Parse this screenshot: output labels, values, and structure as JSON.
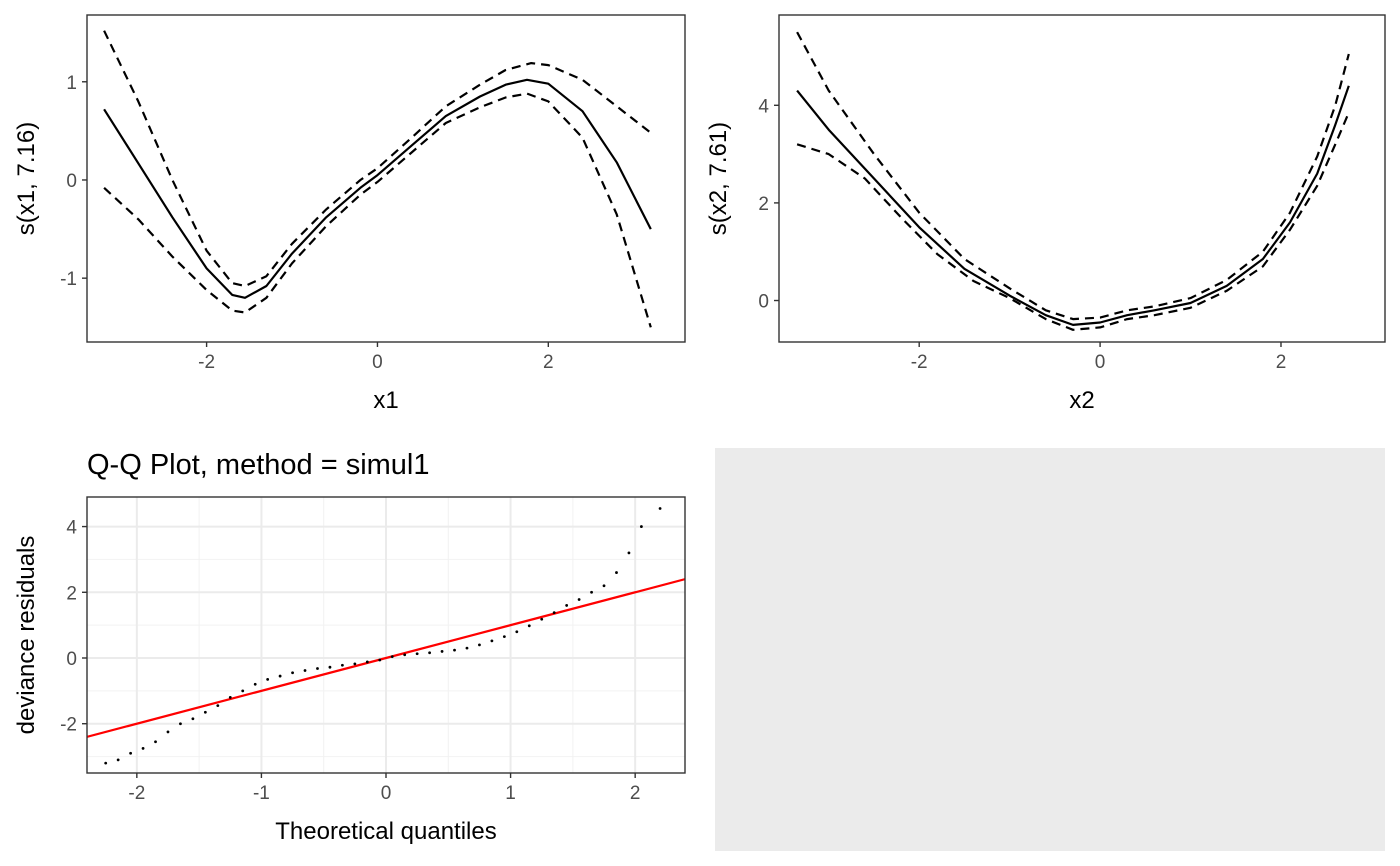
{
  "chart_data": [
    {
      "type": "line",
      "xlabel": "x1",
      "ylabel": "s(x1, 7.16)",
      "xlim": [
        -3.4,
        3.6
      ],
      "ylim": [
        -1.65,
        1.68
      ],
      "xticks": [
        -2,
        0,
        2
      ],
      "yticks": [
        -1,
        0,
        1
      ],
      "xtick_labels": [
        "-2",
        "0",
        "2"
      ],
      "ytick_labels": [
        "-1",
        "0",
        "1"
      ],
      "grid": false,
      "series": [
        {
          "style": "solid",
          "x": [
            -3.2,
            -2.8,
            -2.4,
            -2.0,
            -1.7,
            -1.55,
            -1.3,
            -1.0,
            -0.6,
            -0.2,
            0.0,
            0.4,
            0.8,
            1.2,
            1.5,
            1.75,
            2.0,
            2.4,
            2.8,
            3.2
          ],
          "y": [
            0.72,
            0.17,
            -0.38,
            -0.9,
            -1.17,
            -1.2,
            -1.08,
            -0.75,
            -0.38,
            -0.08,
            0.05,
            0.35,
            0.65,
            0.85,
            0.97,
            1.02,
            0.98,
            0.7,
            0.18,
            -0.5
          ]
        },
        {
          "style": "dashed",
          "x": [
            -3.2,
            -2.8,
            -2.4,
            -2.0,
            -1.7,
            -1.55,
            -1.3,
            -1.0,
            -0.6,
            -0.2,
            0.0,
            0.4,
            0.8,
            1.2,
            1.5,
            1.8,
            2.0,
            2.4,
            2.8,
            3.2
          ],
          "y": [
            1.52,
            0.8,
            0.0,
            -0.72,
            -1.05,
            -1.08,
            -0.98,
            -0.65,
            -0.3,
            -0.0,
            0.12,
            0.43,
            0.75,
            0.97,
            1.12,
            1.19,
            1.17,
            1.02,
            0.75,
            0.48
          ]
        },
        {
          "style": "dashed",
          "x": [
            -3.2,
            -2.8,
            -2.4,
            -2.0,
            -1.7,
            -1.55,
            -1.3,
            -1.0,
            -0.6,
            -0.2,
            0.0,
            0.4,
            0.8,
            1.2,
            1.5,
            1.75,
            2.0,
            2.4,
            2.8,
            3.2
          ],
          "y": [
            -0.08,
            -0.4,
            -0.78,
            -1.12,
            -1.33,
            -1.35,
            -1.2,
            -0.85,
            -0.47,
            -0.15,
            -0.02,
            0.28,
            0.58,
            0.74,
            0.84,
            0.88,
            0.8,
            0.43,
            -0.35,
            -1.5
          ]
        }
      ]
    },
    {
      "type": "line",
      "xlabel": "x2",
      "ylabel": "s(x2, 7.61)",
      "xlim": [
        -3.55,
        3.15
      ],
      "ylim": [
        -0.85,
        5.85
      ],
      "xticks": [
        -2,
        0,
        2
      ],
      "yticks": [
        0,
        2,
        4
      ],
      "xtick_labels": [
        "-2",
        "0",
        "2"
      ],
      "ytick_labels": [
        "0",
        "2",
        "4"
      ],
      "grid": false,
      "series": [
        {
          "style": "solid",
          "x": [
            -3.35,
            -3.0,
            -2.5,
            -2.0,
            -1.5,
            -1.0,
            -0.6,
            -0.3,
            0.0,
            0.3,
            0.6,
            1.0,
            1.4,
            1.8,
            2.1,
            2.4,
            2.6,
            2.75
          ],
          "y": [
            4.3,
            3.5,
            2.5,
            1.5,
            0.65,
            0.1,
            -0.3,
            -0.5,
            -0.45,
            -0.3,
            -0.2,
            -0.05,
            0.3,
            0.85,
            1.6,
            2.6,
            3.6,
            4.4
          ]
        },
        {
          "style": "dashed",
          "x": [
            -3.35,
            -3.0,
            -2.5,
            -2.0,
            -1.5,
            -1.0,
            -0.6,
            -0.3,
            0.0,
            0.3,
            0.6,
            1.0,
            1.4,
            1.8,
            2.1,
            2.4,
            2.6,
            2.75
          ],
          "y": [
            5.5,
            4.3,
            3.0,
            1.8,
            0.85,
            0.25,
            -0.2,
            -0.38,
            -0.35,
            -0.2,
            -0.12,
            0.05,
            0.42,
            1.0,
            1.8,
            2.95,
            4.0,
            5.05
          ]
        },
        {
          "style": "dashed",
          "x": [
            -3.35,
            -3.0,
            -2.6,
            -2.2,
            -1.8,
            -1.4,
            -1.0,
            -0.6,
            -0.3,
            0.0,
            0.3,
            0.6,
            1.0,
            1.4,
            1.8,
            2.1,
            2.4,
            2.6,
            2.75
          ],
          "y": [
            3.2,
            3.0,
            2.5,
            1.7,
            0.95,
            0.4,
            0.05,
            -0.38,
            -0.6,
            -0.55,
            -0.38,
            -0.3,
            -0.15,
            0.2,
            0.7,
            1.45,
            2.35,
            3.2,
            3.85
          ]
        }
      ]
    },
    {
      "type": "scatter",
      "title": "Q-Q Plot, method = simul1",
      "xlabel": "Theoretical quantiles",
      "ylabel": "deviance residuals",
      "xlim": [
        -2.4,
        2.4
      ],
      "ylim": [
        -3.5,
        4.9
      ],
      "xticks": [
        -2,
        -1,
        0,
        1,
        2
      ],
      "yticks": [
        -2,
        0,
        2,
        4
      ],
      "xtick_labels": [
        "-2",
        "-1",
        "0",
        "1",
        "2"
      ],
      "ytick_labels": [
        "-2",
        "0",
        "2",
        "4"
      ],
      "grid": true,
      "reference_line": {
        "slope": 1.0,
        "intercept": 0.0,
        "color": "#ff0000"
      },
      "series": [
        {
          "x": [
            -2.25,
            -2.15,
            -2.05,
            -1.95,
            -1.85,
            -1.75,
            -1.65,
            -1.55,
            -1.45,
            -1.35,
            -1.25,
            -1.15,
            -1.05,
            -0.95,
            -0.85,
            -0.75,
            -0.65,
            -0.55,
            -0.45,
            -0.35,
            -0.25,
            -0.15,
            -0.05,
            0.05,
            0.15,
            0.25,
            0.35,
            0.45,
            0.55,
            0.65,
            0.75,
            0.85,
            0.95,
            1.05,
            1.15,
            1.25,
            1.35,
            1.45,
            1.55,
            1.65,
            1.75,
            1.85,
            1.95,
            2.05,
            2.2
          ],
          "y": [
            -3.2,
            -3.1,
            -2.9,
            -2.75,
            -2.55,
            -2.25,
            -2.0,
            -1.85,
            -1.65,
            -1.45,
            -1.2,
            -1.0,
            -0.8,
            -0.65,
            -0.55,
            -0.45,
            -0.38,
            -0.32,
            -0.28,
            -0.22,
            -0.18,
            -0.12,
            -0.06,
            0.04,
            0.1,
            0.13,
            0.16,
            0.2,
            0.24,
            0.3,
            0.4,
            0.52,
            0.65,
            0.8,
            0.98,
            1.18,
            1.38,
            1.6,
            1.78,
            2.0,
            2.2,
            2.6,
            3.2,
            4.0,
            4.55
          ]
        }
      ]
    }
  ]
}
